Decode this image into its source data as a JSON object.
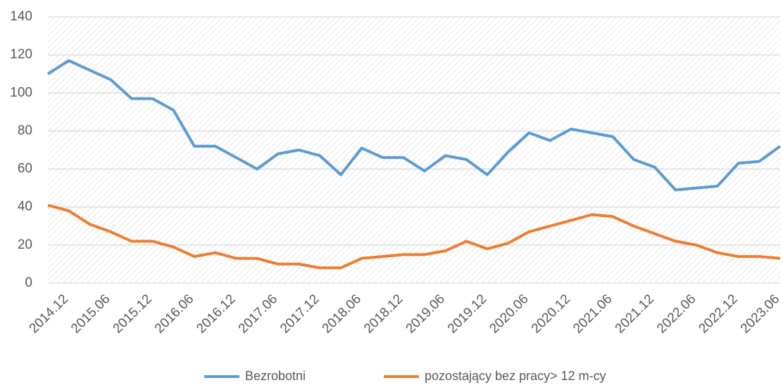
{
  "chart_data": {
    "type": "line",
    "categories": [
      "2014.12",
      null,
      "2015.06",
      null,
      "2015.12",
      null,
      "2016.06",
      null,
      "2016.12",
      null,
      "2017.06",
      null,
      "2017.12",
      null,
      "2018.06",
      null,
      "2018.12",
      null,
      "2019.06",
      null,
      "2019.12",
      null,
      "2020.06",
      null,
      "2020.12",
      null,
      "2021.06",
      null,
      "2021.12",
      null,
      "2022.06",
      null,
      "2022.12",
      null,
      "2023.06",
      null
    ],
    "series": [
      {
        "name": "Bezrobotni",
        "color": "#5b9bd5",
        "values": [
          110,
          117,
          112,
          107,
          97,
          97,
          91,
          72,
          72,
          66,
          60,
          68,
          70,
          67,
          57,
          71,
          66,
          66,
          59,
          67,
          65,
          57,
          69,
          79,
          75,
          81,
          79,
          77,
          65,
          61,
          49,
          50,
          51,
          63,
          64,
          72
        ]
      },
      {
        "name": "pozostający bez pracy> 12 m-cy",
        "color": "#ed7d31",
        "values": [
          41,
          38,
          31,
          27,
          22,
          22,
          19,
          14,
          16,
          13,
          13,
          10,
          10,
          8,
          8,
          13,
          14,
          15,
          15,
          17,
          22,
          18,
          21,
          27,
          30,
          33,
          36,
          35,
          30,
          26,
          22,
          20,
          16,
          14,
          14,
          13
        ]
      }
    ],
    "ylim": [
      0,
      140
    ],
    "yticks": [
      0,
      20,
      40,
      60,
      80,
      100,
      120,
      140
    ],
    "grid": true,
    "legend": "bottom"
  }
}
